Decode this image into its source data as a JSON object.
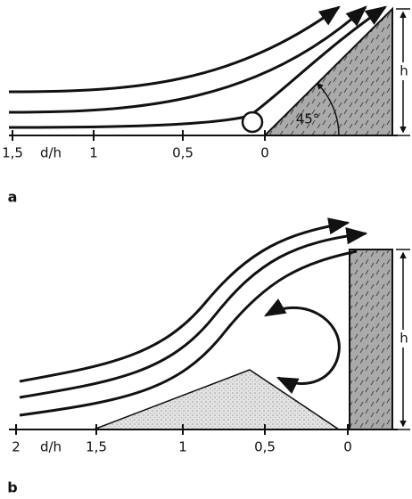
{
  "panels": [
    {
      "label": "a",
      "height_label": "h",
      "angle_label": "45°",
      "axis": {
        "unit": "d/h",
        "ticks": [
          "1,5",
          "1",
          "0,5",
          "0"
        ]
      }
    },
    {
      "label": "b",
      "height_label": "h",
      "axis": {
        "unit": "d/h",
        "ticks": [
          "2",
          "1,5",
          "1",
          "0,5",
          "0"
        ]
      }
    }
  ]
}
